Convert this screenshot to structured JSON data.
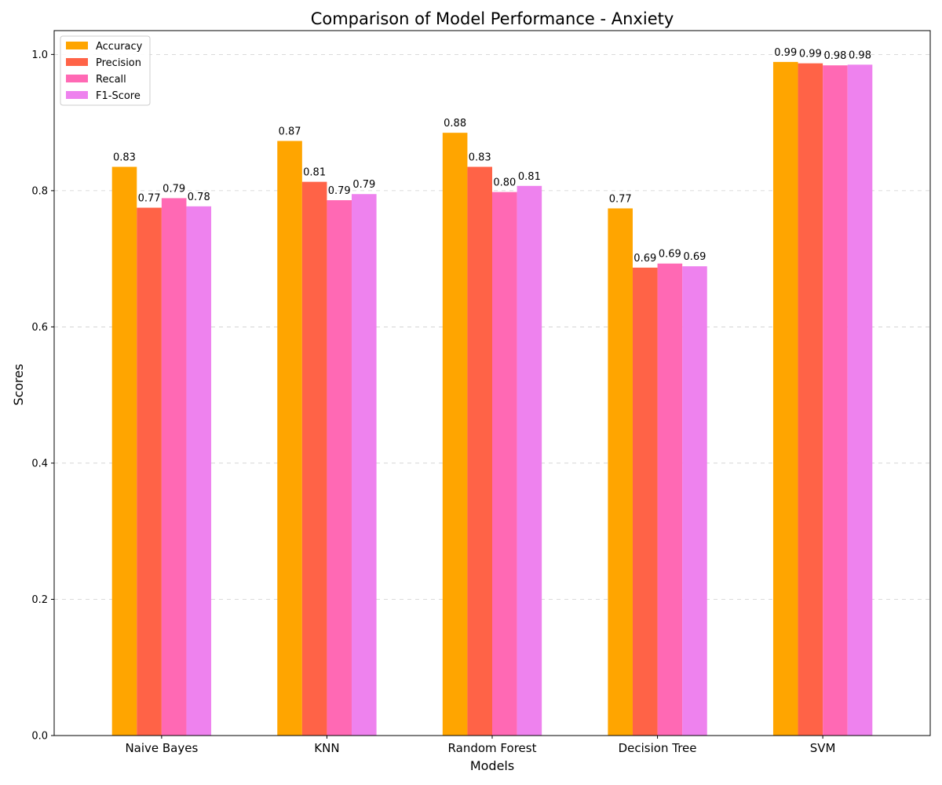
{
  "chart_data": {
    "type": "bar",
    "title": "Comparison of Model Performance - Anxiety",
    "xlabel": "Models",
    "ylabel": "Scores",
    "categories": [
      "Naive Bayes",
      "KNN",
      "Random Forest",
      "Decision Tree",
      "SVM"
    ],
    "series": [
      {
        "name": "Accuracy",
        "color": "#FFA500",
        "values": [
          0.835,
          0.873,
          0.885,
          0.774,
          0.989
        ],
        "labels": [
          "0.83",
          "0.87",
          "0.88",
          "0.77",
          "0.99"
        ]
      },
      {
        "name": "Precision",
        "color": "#FF6347",
        "values": [
          0.775,
          0.813,
          0.835,
          0.687,
          0.987
        ],
        "labels": [
          "0.77",
          "0.81",
          "0.83",
          "0.69",
          "0.99"
        ]
      },
      {
        "name": "Recall",
        "color": "#FF69B4",
        "values": [
          0.789,
          0.786,
          0.798,
          0.693,
          0.984
        ],
        "labels": [
          "0.79",
          "0.79",
          "0.80",
          "0.69",
          "0.98"
        ]
      },
      {
        "name": "F1-Score",
        "color": "#EE82EE",
        "values": [
          0.777,
          0.795,
          0.807,
          0.689,
          0.985
        ],
        "labels": [
          "0.78",
          "0.79",
          "0.81",
          "0.69",
          "0.98"
        ]
      }
    ],
    "ylim": [
      0,
      1.035
    ],
    "yticks": [
      "0.0",
      "0.2",
      "0.4",
      "0.6",
      "0.8",
      "1.0"
    ],
    "grid": "y-dashed",
    "legend_position": "top-left"
  }
}
